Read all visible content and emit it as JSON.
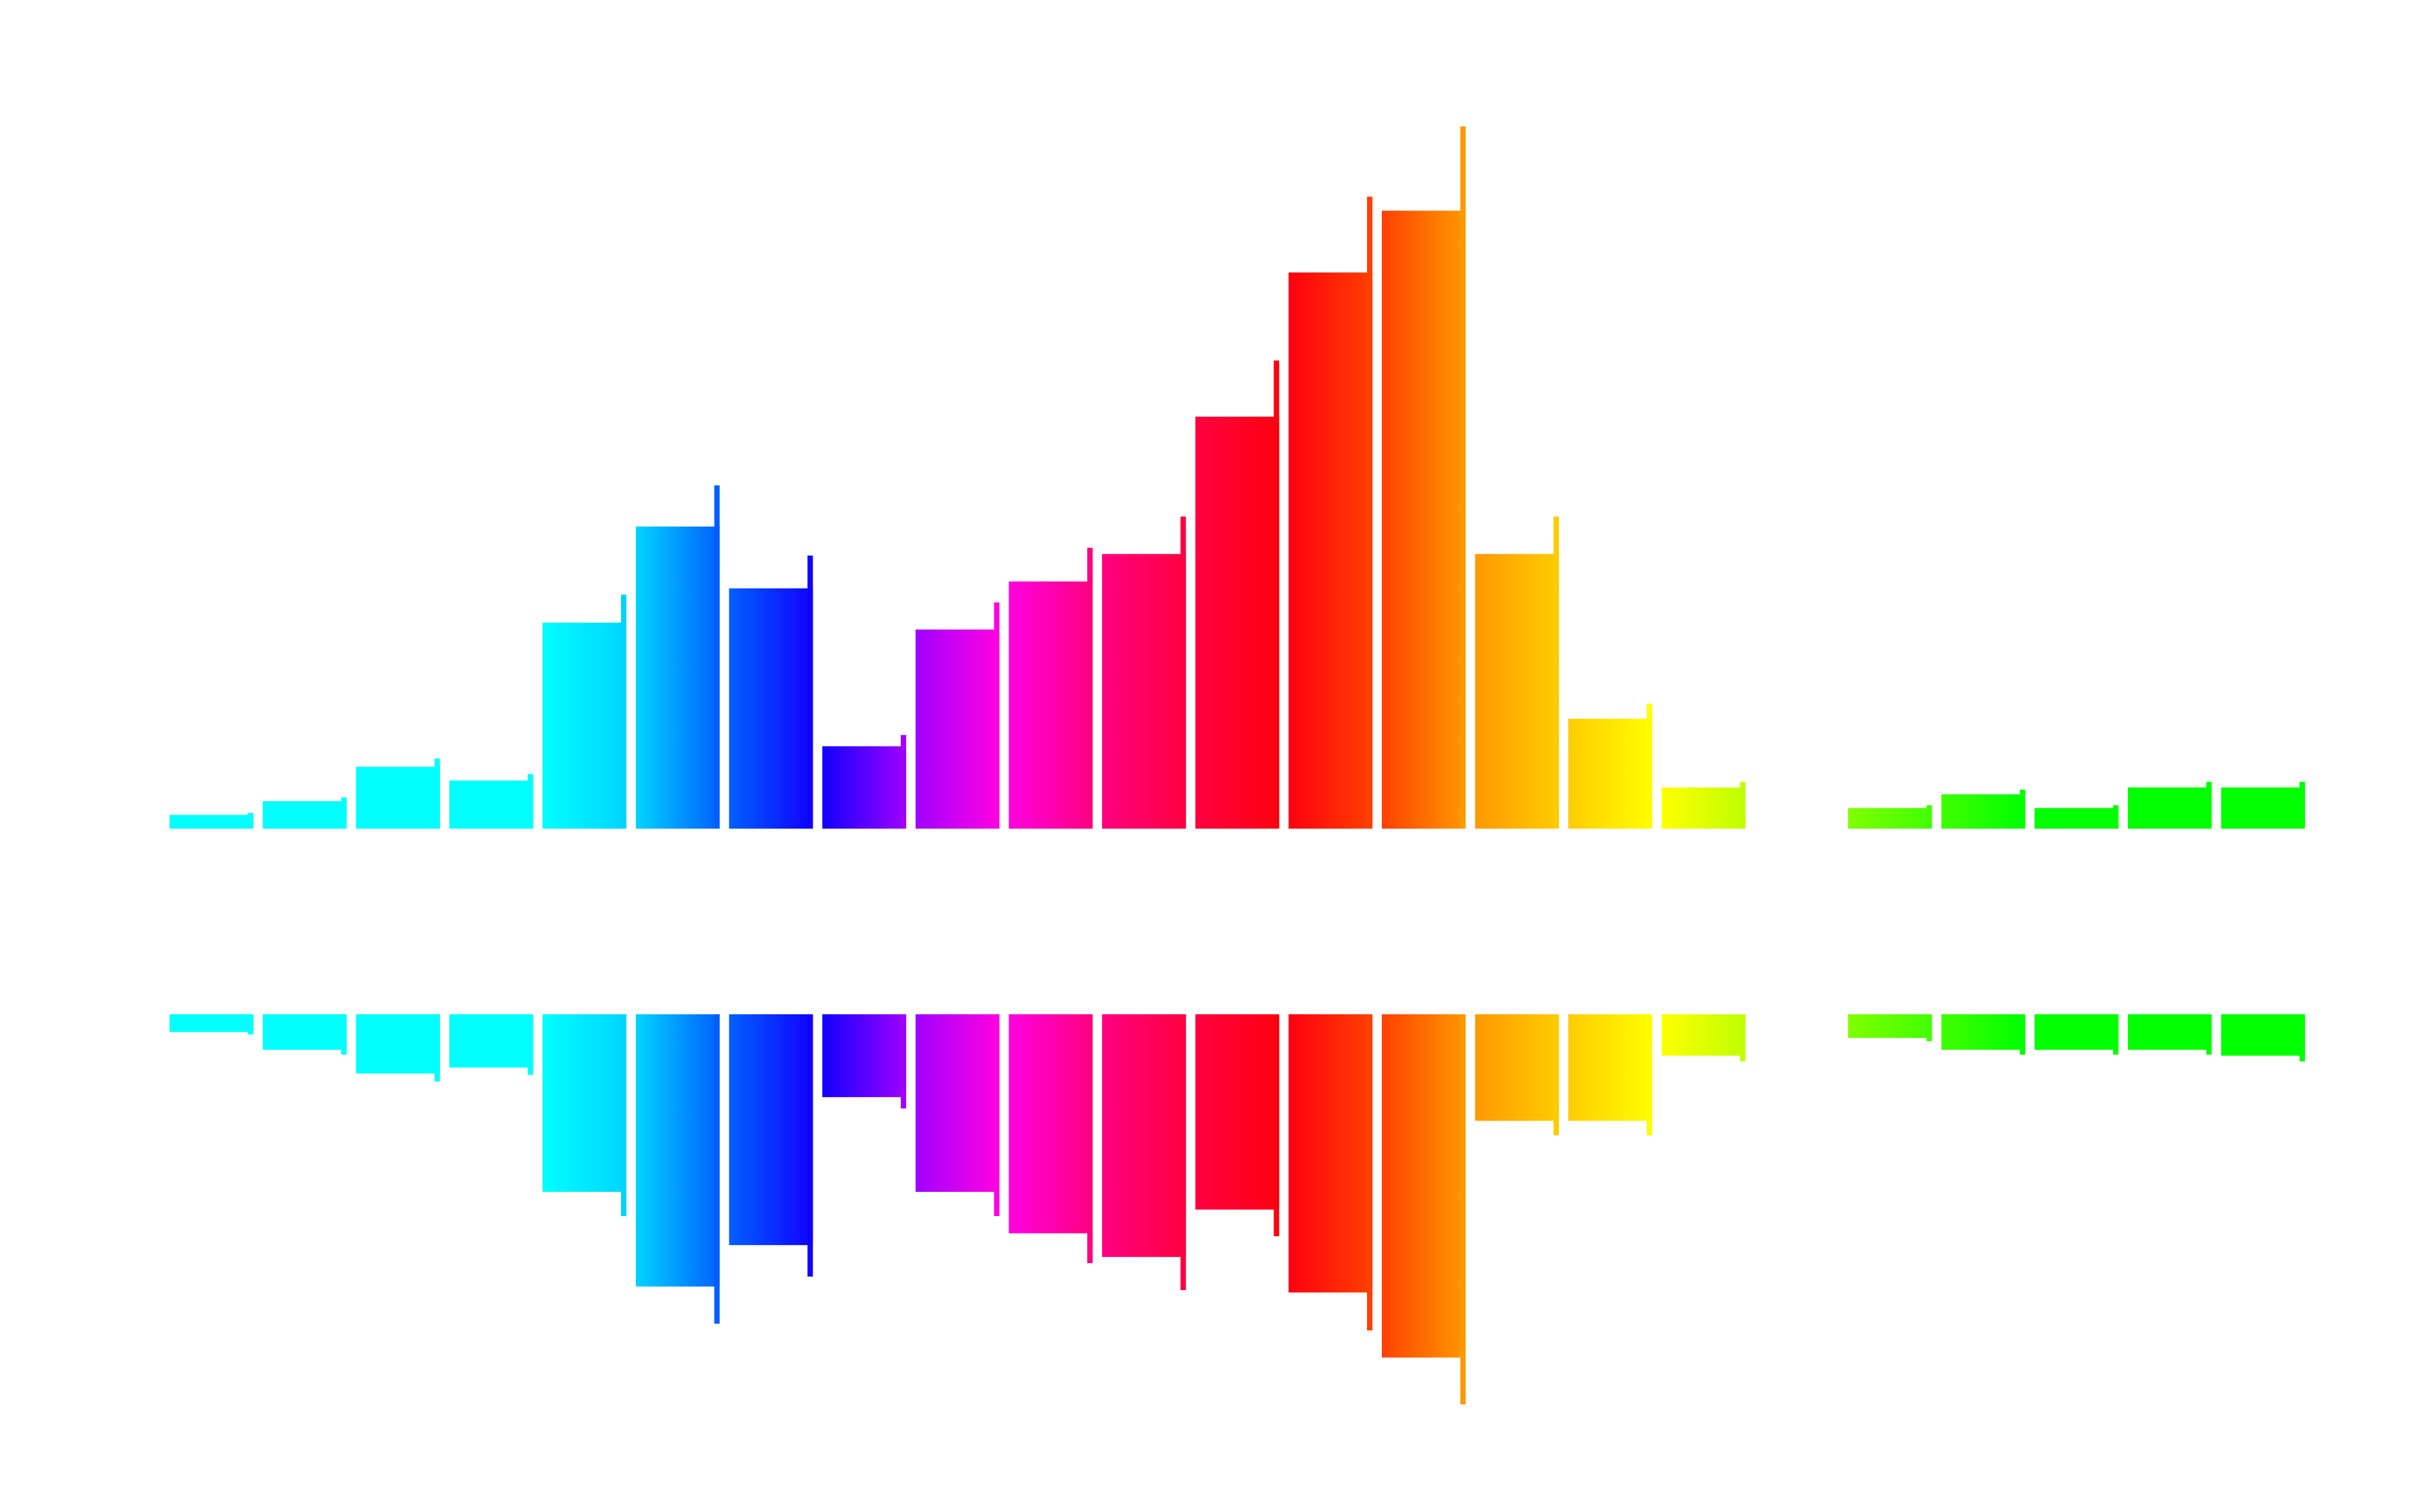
{
  "graphic": {
    "type": "mirrored-spectrum-bars",
    "description_colors": {
      "background": "#ffffff"
    },
    "bars": [
      {
        "id": 1,
        "top": 0.02,
        "bottom": 0.03,
        "color": "#00ffff"
      },
      {
        "id": 2,
        "top": 0.04,
        "bottom": 0.06,
        "color": "#00ffff"
      },
      {
        "id": 3,
        "top": 0.09,
        "bottom": 0.1,
        "color": "#00ffff"
      },
      {
        "id": 4,
        "top": 0.07,
        "bottom": 0.09,
        "color": "#00ffff"
      },
      {
        "id": 5,
        "top": 0.3,
        "bottom": 0.3,
        "color": "#00ffff"
      },
      {
        "id": 6,
        "top": 0.44,
        "bottom": 0.46,
        "color": "#00d4ff"
      },
      {
        "id": 7,
        "top": 0.35,
        "bottom": 0.39,
        "color": "#0060ff"
      },
      {
        "id": 8,
        "top": 0.12,
        "bottom": 0.14,
        "color": "#1000ff"
      },
      {
        "id": 9,
        "top": 0.29,
        "bottom": 0.3,
        "color": "#a000ff"
      },
      {
        "id": 10,
        "top": 0.36,
        "bottom": 0.37,
        "color": "#ff00e0"
      },
      {
        "id": 11,
        "top": 0.4,
        "bottom": 0.41,
        "color": "#ff0080"
      },
      {
        "id": 12,
        "top": 0.6,
        "bottom": 0.33,
        "color": "#ff0040"
      },
      {
        "id": 13,
        "top": 0.81,
        "bottom": 0.47,
        "color": "#ff0010"
      },
      {
        "id": 14,
        "top": 0.9,
        "bottom": 0.58,
        "color": "#ff4000"
      },
      {
        "id": 15,
        "top": 0.4,
        "bottom": 0.18,
        "color": "#ff9900"
      },
      {
        "id": 16,
        "top": 0.16,
        "bottom": 0.18,
        "color": "#ffcc00"
      },
      {
        "id": 17,
        "top": 0.06,
        "bottom": 0.07,
        "color": "#ffff00"
      },
      {
        "id": 18,
        "top": 0.0,
        "bottom": 0.0,
        "color": "#bfff00"
      },
      {
        "id": 19,
        "top": 0.03,
        "bottom": 0.04,
        "color": "#80ff00"
      },
      {
        "id": 20,
        "top": 0.05,
        "bottom": 0.06,
        "color": "#40ff00"
      },
      {
        "id": 21,
        "top": 0.03,
        "bottom": 0.06,
        "color": "#00ff00"
      },
      {
        "id": 22,
        "top": 0.06,
        "bottom": 0.06,
        "color": "#00ff00"
      },
      {
        "id": 23,
        "top": 0.06,
        "bottom": 0.07,
        "color": "#00ff00"
      }
    ]
  }
}
